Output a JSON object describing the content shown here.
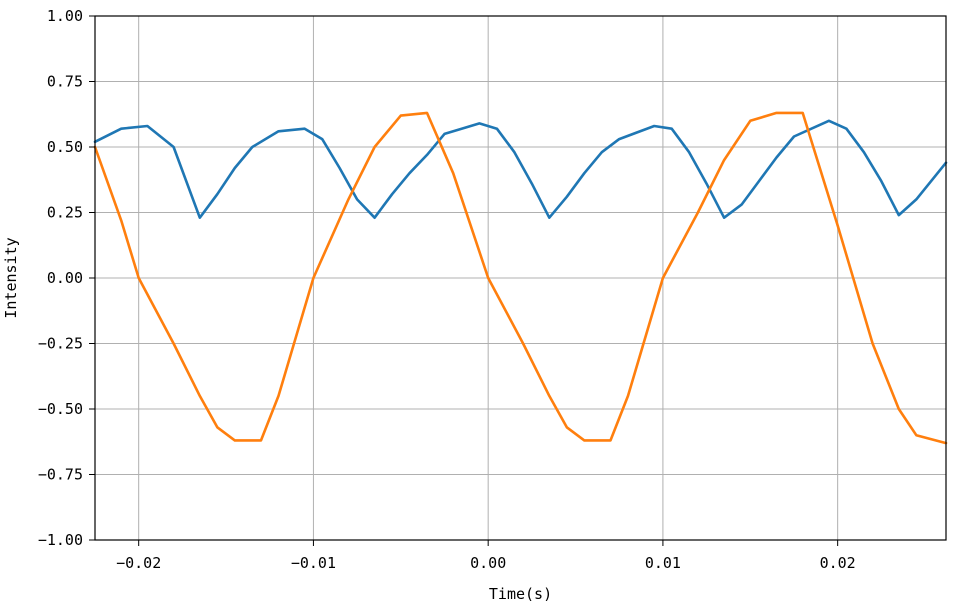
{
  "chart_data": {
    "type": "line",
    "title": "",
    "xlabel": "Time(s)",
    "ylabel": "Intensity",
    "xlim": [
      -0.0225,
      0.0262
    ],
    "ylim": [
      -1.0,
      1.0
    ],
    "xticks": [
      -0.02,
      -0.01,
      0.0,
      0.01,
      0.02
    ],
    "xtick_labels": [
      "−0.02",
      "−0.01",
      "0.00",
      "0.01",
      "0.02"
    ],
    "yticks": [
      -1.0,
      -0.75,
      -0.5,
      -0.25,
      0.0,
      0.25,
      0.5,
      0.75,
      1.0
    ],
    "ytick_labels": [
      "−1.00",
      "−0.75",
      "−0.50",
      "−0.25",
      "0.00",
      "0.25",
      "0.50",
      "0.75",
      "1.00"
    ],
    "grid": true,
    "legend": "none",
    "series": [
      {
        "color": "#1f77b4",
        "x": [
          -0.0225,
          -0.021,
          -0.0195,
          -0.018,
          -0.0165,
          -0.0155,
          -0.0145,
          -0.0135,
          -0.012,
          -0.0105,
          -0.0095,
          -0.0085,
          -0.0075,
          -0.0065,
          -0.0055,
          -0.0045,
          -0.0035,
          -0.0025,
          -0.0005,
          0.0005,
          0.0015,
          0.0025,
          0.0035,
          0.0045,
          0.0055,
          0.0065,
          0.0075,
          0.0095,
          0.0105,
          0.0115,
          0.0125,
          0.0135,
          0.0145,
          0.0155,
          0.0165,
          0.0175,
          0.0195,
          0.0205,
          0.0215,
          0.0225,
          0.0235,
          0.0245,
          0.0262
        ],
        "y": [
          0.52,
          0.57,
          0.58,
          0.5,
          0.23,
          0.32,
          0.42,
          0.5,
          0.56,
          0.57,
          0.53,
          0.42,
          0.3,
          0.23,
          0.32,
          0.4,
          0.47,
          0.55,
          0.59,
          0.57,
          0.48,
          0.36,
          0.23,
          0.31,
          0.4,
          0.48,
          0.53,
          0.58,
          0.57,
          0.48,
          0.36,
          0.23,
          0.28,
          0.37,
          0.46,
          0.54,
          0.6,
          0.57,
          0.48,
          0.37,
          0.24,
          0.3,
          0.44
        ]
      },
      {
        "color": "#ff7f0e",
        "x": [
          -0.0225,
          -0.021,
          -0.02,
          -0.018,
          -0.0165,
          -0.0155,
          -0.0145,
          -0.013,
          -0.012,
          -0.01,
          -0.008,
          -0.0065,
          -0.005,
          -0.0035,
          -0.002,
          0.0,
          0.002,
          0.0035,
          0.0045,
          0.0055,
          0.007,
          0.008,
          0.01,
          0.012,
          0.0135,
          0.015,
          0.0165,
          0.018,
          0.02,
          0.022,
          0.0235,
          0.0245,
          0.0262
        ],
        "y": [
          0.5,
          0.22,
          0.0,
          -0.25,
          -0.45,
          -0.57,
          -0.62,
          -0.62,
          -0.45,
          0.0,
          0.3,
          0.5,
          0.62,
          0.63,
          0.4,
          0.0,
          -0.25,
          -0.45,
          -0.57,
          -0.62,
          -0.62,
          -0.45,
          0.0,
          0.25,
          0.45,
          0.6,
          0.63,
          0.63,
          0.2,
          -0.25,
          -0.5,
          -0.6,
          -0.63
        ]
      }
    ]
  }
}
